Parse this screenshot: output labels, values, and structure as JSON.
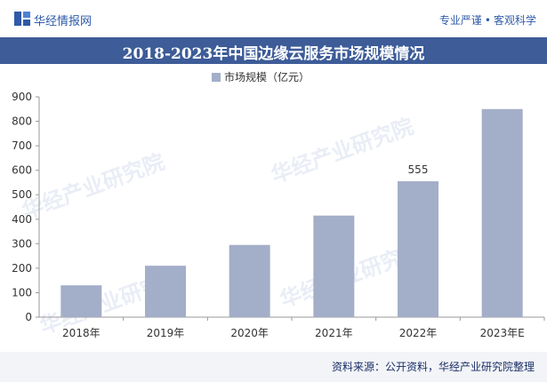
{
  "header": {
    "brand": "华经情报网",
    "tagline_left": "专业严谨",
    "tagline_right": "客观科学"
  },
  "chart_data": {
    "type": "bar",
    "title": "2018-2023年中国边缘云服务市场规模情况",
    "categories": [
      "2018年",
      "2019年",
      "2020年",
      "2021年",
      "2022年",
      "2023年E"
    ],
    "series": [
      {
        "name": "市场规模（亿元）",
        "values": [
          130,
          210,
          295,
          415,
          555,
          850
        ]
      }
    ],
    "data_labels": [
      {
        "index": 4,
        "text": "555"
      }
    ],
    "yticks": [
      "0",
      "100",
      "200",
      "300",
      "400",
      "500",
      "600",
      "700",
      "800",
      "900"
    ],
    "ylim": [
      0,
      900
    ],
    "grid": false,
    "legend_position": "top-center",
    "bar_color": "#a3aec8"
  },
  "watermarks": [
    "华经产业研究院",
    "华经产业研究院",
    "华经产业研究院",
    "华经产业研究院"
  ],
  "footer": {
    "source": "资料来源：公开资料，华经产业研究院整理"
  }
}
